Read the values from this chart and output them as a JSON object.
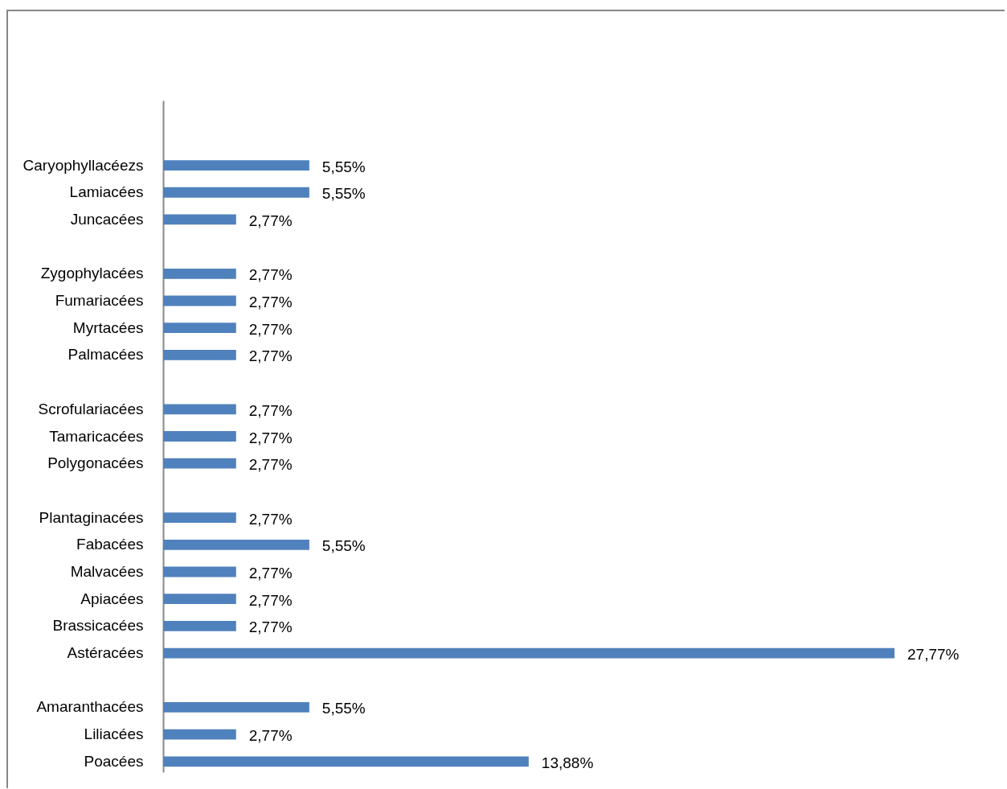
{
  "chart_data": {
    "type": "bar",
    "orientation": "horizontal",
    "color": "#4f81bd",
    "categories": [
      null,
      null,
      "Caryophyllacéezs",
      "Lamiacées",
      "Juncacées",
      null,
      "Zygophylacées",
      "Fumariacées",
      "Myrtacées",
      "Palmacées",
      null,
      "Scrofulariacées",
      "Tamaricacées",
      "Polygonacées",
      null,
      "Plantaginacées",
      "Fabacées",
      "Malvacées",
      "Apiacées",
      "Brassicacées",
      "Astéracées",
      null,
      "Amaranthacées",
      "Liliacées",
      "Poacées"
    ],
    "values": [
      null,
      null,
      5.55,
      5.55,
      2.77,
      null,
      2.77,
      2.77,
      2.77,
      2.77,
      null,
      2.77,
      2.77,
      2.77,
      null,
      2.77,
      5.55,
      2.77,
      2.77,
      2.77,
      27.77,
      null,
      5.55,
      2.77,
      13.88
    ],
    "value_labels": [
      null,
      null,
      "5,55%",
      "5,55%",
      "2,77%",
      null,
      "2,77%",
      "2,77%",
      "2,77%",
      "2,77%",
      null,
      "2,77%",
      "2,77%",
      "2,77%",
      null,
      "2,77%",
      "5,55%",
      "2,77%",
      "2,77%",
      "2,77%",
      "27,77%",
      null,
      "5,55%",
      "2,77%",
      "13,88%"
    ],
    "grid": false
  }
}
